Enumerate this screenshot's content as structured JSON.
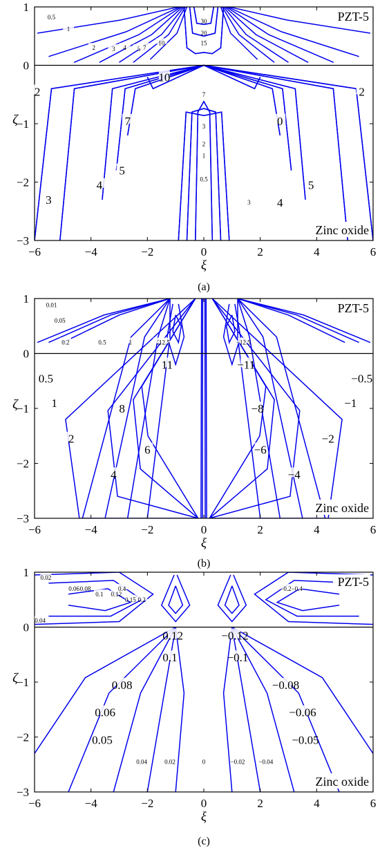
{
  "panels": [
    {
      "id": "a",
      "caption": "(a)",
      "top_material": "PZT-5",
      "bottom_material": "Zinc oxide",
      "xlabel": "ξ",
      "ylabel": "ζ",
      "xticks": [
        "−6",
        "−4",
        "−2",
        "0",
        "2",
        "4",
        "6"
      ],
      "yticks": [
        "1",
        "0",
        "−1",
        "−2",
        "−3"
      ],
      "contour_labels": [
        "0.5",
        "1",
        "2",
        "3",
        "4",
        "5",
        "7",
        "10",
        "15",
        "20",
        "30",
        "2",
        "7",
        "5",
        "4",
        "3",
        "10",
        "7",
        "3",
        "2",
        "1",
        "0.5",
        "0",
        "5",
        "4",
        "3",
        "2"
      ]
    },
    {
      "id": "b",
      "caption": "(b)",
      "top_material": "PZT-5",
      "bottom_material": "Zinc oxide",
      "xlabel": "ξ",
      "ylabel": "ζ",
      "xticks": [
        "−6",
        "−4",
        "−2",
        "0",
        "2",
        "4",
        "6"
      ],
      "yticks": [
        "1",
        "0",
        "−1",
        "−2",
        "−3"
      ],
      "contour_labels": [
        "0.01",
        "0.05",
        "0.2",
        "0.5",
        "1",
        "2",
        "12.5",
        "−12.5",
        "11",
        "−11",
        "0.5",
        "−0.5",
        "1",
        "−1",
        "2",
        "−2",
        "8",
        "−8",
        "6",
        "−6",
        "4",
        "−4"
      ]
    },
    {
      "id": "c",
      "caption": "(c)",
      "top_material": "PZT-5",
      "bottom_material": "Zinc oxide",
      "xlabel": "ξ",
      "ylabel": "ζ",
      "xticks": [
        "−6",
        "−4",
        "−2",
        "0",
        "2",
        "4",
        "6"
      ],
      "yticks": [
        "1",
        "0",
        "−1",
        "−2",
        "−3"
      ],
      "contour_labels": [
        "0.02",
        "0.04",
        "0.06",
        "0.08",
        "0.1",
        "0.12",
        "0.15",
        "0.2",
        "0.4",
        "−0.2",
        "−0.4",
        "0.12",
        "−0.12",
        "0.1",
        "−0.1",
        "0.08",
        "−0.08",
        "0.06",
        "−0.06",
        "0.05",
        "−0.05",
        "0.04",
        "−0.04",
        "0.02",
        "−0.02",
        "0"
      ]
    }
  ],
  "chart_data": [
    {
      "type": "contour",
      "panel": "a",
      "xlim": [
        -6,
        6
      ],
      "ylim": [
        -3,
        1
      ],
      "interface_y": 0,
      "top_region": "PZT-5",
      "bottom_region": "Zinc oxide",
      "levels_top": [
        0.5,
        1,
        2,
        3,
        4,
        5,
        7,
        10,
        15,
        20,
        30
      ],
      "levels_bottom": [
        0,
        0.5,
        1,
        2,
        3,
        4,
        5,
        7,
        10
      ],
      "symmetry": "even in ξ",
      "line_color": "#0000ee"
    },
    {
      "type": "contour",
      "panel": "b",
      "xlim": [
        -6,
        6
      ],
      "ylim": [
        -3,
        1
      ],
      "interface_y": 0,
      "top_region": "PZT-5",
      "bottom_region": "Zinc oxide",
      "levels_top": [
        0.01,
        0.05,
        0.2,
        0.5,
        1,
        2,
        12.5,
        -12.5
      ],
      "levels_bottom": [
        0.5,
        1,
        2,
        4,
        6,
        8,
        11,
        -0.5,
        -1,
        -2,
        -4,
        -6,
        -8,
        -11
      ],
      "symmetry": "odd in ξ",
      "line_color": "#0000ee"
    },
    {
      "type": "contour",
      "panel": "c",
      "xlim": [
        -6,
        6
      ],
      "ylim": [
        -3,
        1
      ],
      "interface_y": 0,
      "top_region": "PZT-5",
      "bottom_region": "Zinc oxide",
      "levels_top": [
        0.02,
        0.06,
        0.08,
        0.1,
        0.12,
        0.15,
        0.2,
        0.4,
        -0.02,
        -0.2,
        -0.4
      ],
      "levels_bottom": [
        0,
        0.02,
        0.04,
        0.05,
        0.06,
        0.08,
        0.1,
        0.12,
        -0.02,
        -0.04,
        -0.05,
        -0.06,
        -0.08,
        -0.1,
        -0.12
      ],
      "symmetry": "odd in ξ",
      "line_color": "#0000ee"
    }
  ]
}
